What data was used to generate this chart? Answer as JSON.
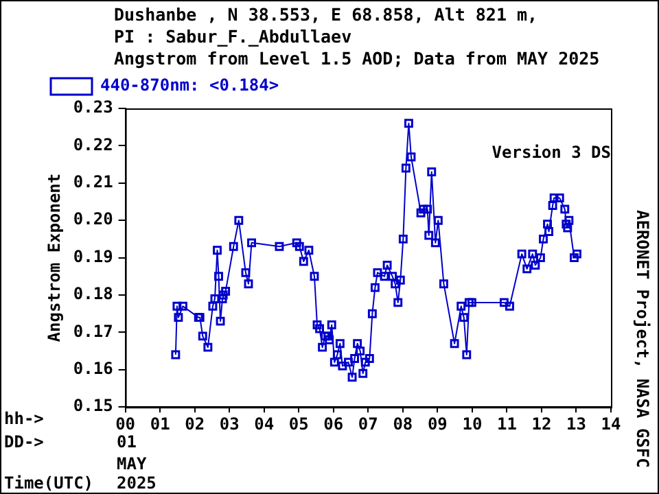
{
  "chart_data": {
    "type": "line",
    "title": "Dushanbe , N 38.553, E  68.858, Alt 821 m,",
    "subtitle": "PI : Sabur_F._Abdullaev",
    "ylabel": "Angstrom Exponent",
    "annotations": [
      "Angstrom from Level 1.5 AOD; Data from MAY 2025",
      "Version 3 DS",
      "AERONET Project, NASA GSFC",
      "hh->",
      "DD->",
      "01",
      "MAY",
      "2025",
      "Time(UTC)"
    ],
    "xlim": [
      0,
      14
    ],
    "xticks": [
      {
        "value": 0,
        "label": "00"
      },
      {
        "value": 1,
        "label": "01"
      },
      {
        "value": 2,
        "label": "02"
      },
      {
        "value": 3,
        "label": "03"
      },
      {
        "value": 4,
        "label": "04"
      },
      {
        "value": 5,
        "label": "05"
      },
      {
        "value": 6,
        "label": "06"
      },
      {
        "value": 7,
        "label": "07"
      },
      {
        "value": 8,
        "label": "08"
      },
      {
        "value": 9,
        "label": "09"
      },
      {
        "value": 10,
        "label": "10"
      },
      {
        "value": 11,
        "label": "11"
      },
      {
        "value": 12,
        "label": "12"
      },
      {
        "value": 13,
        "label": "13"
      },
      {
        "value": 14,
        "label": "14"
      }
    ],
    "ylim": [
      0.15,
      0.23
    ],
    "yticks": [
      0.15,
      0.16,
      0.17,
      0.18,
      0.19,
      {
        "value": 0.2,
        "label": "0.20"
      },
      0.21,
      0.22,
      0.23
    ],
    "grid": false,
    "legend": "top left",
    "marker": "square",
    "line_style": "solid",
    "series": [
      {
        "name": "440-870nm: <0.184>",
        "color": "#0000cc",
        "x": [
          1.45,
          1.49,
          1.53,
          1.66,
          2.11,
          2.15,
          2.23,
          2.38,
          2.52,
          2.58,
          2.65,
          2.69,
          2.74,
          2.8,
          2.82,
          2.89,
          3.12,
          3.27,
          3.47,
          3.55,
          3.64,
          4.44,
          4.94,
          5.02,
          5.14,
          5.29,
          5.45,
          5.53,
          5.6,
          5.68,
          5.76,
          5.84,
          5.88,
          5.95,
          6.03,
          6.11,
          6.19,
          6.26,
          6.43,
          6.54,
          6.61,
          6.69,
          6.77,
          6.85,
          6.92,
          7.04,
          7.12,
          7.2,
          7.27,
          7.47,
          7.55,
          7.7,
          7.78,
          7.86,
          7.93,
          8.01,
          8.09,
          8.17,
          8.24,
          8.52,
          8.59,
          8.71,
          8.75,
          8.83,
          8.94,
          9.02,
          9.18,
          9.49,
          9.68,
          9.76,
          9.84,
          9.91,
          9.99,
          10.92,
          11.08,
          11.43,
          11.58,
          11.74,
          11.82,
          11.97,
          12.05,
          12.17,
          12.21,
          12.32,
          12.36,
          12.52,
          12.67,
          12.71,
          12.75,
          12.79,
          12.94,
          13.02
        ],
        "values": [
          0.164,
          0.177,
          0.174,
          0.177,
          0.174,
          0.174,
          0.169,
          0.166,
          0.177,
          0.179,
          0.192,
          0.185,
          0.173,
          0.179,
          0.18,
          0.181,
          0.193,
          0.2,
          0.186,
          0.183,
          0.194,
          0.193,
          0.194,
          0.193,
          0.189,
          0.192,
          0.185,
          0.172,
          0.171,
          0.166,
          0.169,
          0.169,
          0.168,
          0.172,
          0.162,
          0.164,
          0.167,
          0.161,
          0.162,
          0.158,
          0.163,
          0.167,
          0.165,
          0.159,
          0.162,
          0.163,
          0.175,
          0.182,
          0.186,
          0.185,
          0.188,
          0.185,
          0.183,
          0.178,
          0.184,
          0.195,
          0.214,
          0.226,
          0.217,
          0.202,
          0.203,
          0.203,
          0.196,
          0.213,
          0.194,
          0.2,
          0.183,
          0.167,
          0.177,
          0.174,
          0.164,
          0.178,
          0.178,
          0.178,
          0.177,
          0.191,
          0.187,
          0.191,
          0.188,
          0.19,
          0.195,
          0.199,
          0.197,
          0.204,
          0.206,
          0.206,
          0.203,
          0.199,
          0.198,
          0.2,
          0.19,
          0.191
        ]
      }
    ]
  }
}
